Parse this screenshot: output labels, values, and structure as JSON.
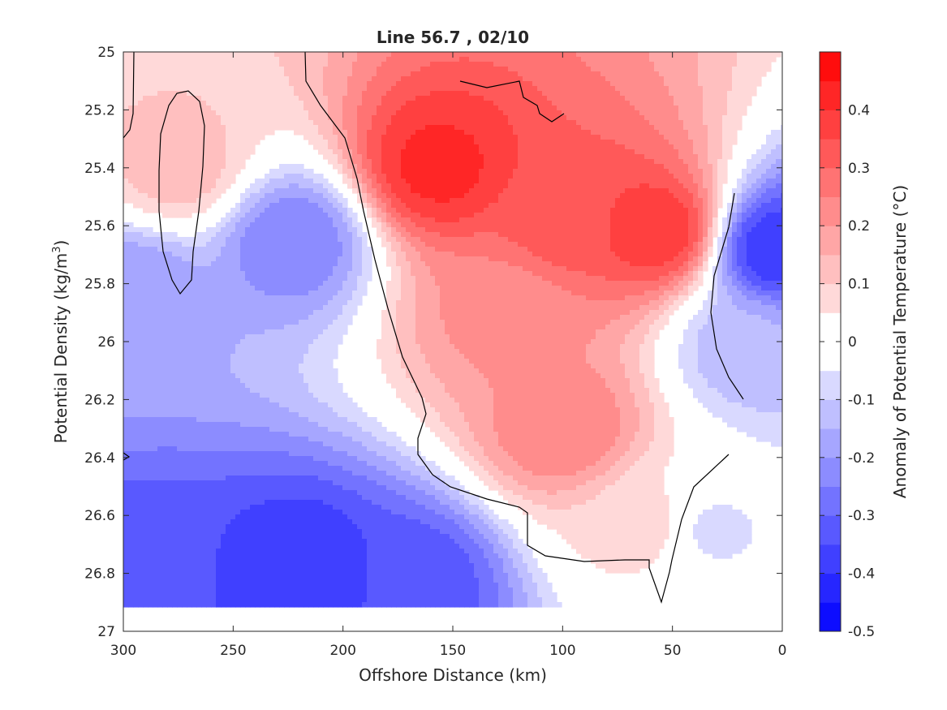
{
  "chart_data": {
    "type": "heatmap",
    "title": "Line 56.7 , 02/10",
    "xlabel": "Offshore Distance (km)",
    "ylabel_base": "Potential Density (kg/m",
    "ylabel_sup": "3",
    "ylabel_end": ")",
    "colorbar_label": "Anomaly of Potential Temperature (°C)",
    "xlim": [
      300,
      0
    ],
    "ylim": [
      25,
      27
    ],
    "x_ticks": [
      "300",
      "250",
      "200",
      "150",
      "100",
      "50",
      "0"
    ],
    "y_ticks": [
      "25",
      "25.2",
      "25.4",
      "25.6",
      "25.8",
      "26",
      "26.2",
      "26.4",
      "26.6",
      "26.8",
      "27"
    ],
    "colorbar_ticks": [
      "0.4",
      "0.3",
      "0.2",
      "0.1",
      "0",
      "-0.1",
      "-0.2",
      "-0.3",
      "-0.4",
      "-0.5"
    ],
    "colorbar_range": [
      -0.5,
      0.5
    ],
    "colorbar_levels": 20,
    "colormap": "blue-white-red",
    "colors": {
      "min": "#0000ff",
      "max": "#ff0000",
      "zero": "#ffffff"
    },
    "contour_levels": [
      0
    ],
    "grid": false,
    "data_extent": {
      "x": [
        300,
        0
      ],
      "y": [
        25,
        26.9
      ]
    },
    "anomaly_features": [
      {
        "x": 157,
        "y": 25.4,
        "value": 0.42
      },
      {
        "x": 57,
        "y": 25.62,
        "value": 0.4
      },
      {
        "x": 97,
        "y": 25.58,
        "value": 0.34
      },
      {
        "x": 125,
        "y": 25.9,
        "value": 0.22
      },
      {
        "x": 100,
        "y": 26.3,
        "value": 0.25
      },
      {
        "x": 275,
        "y": 25.4,
        "value": 0.13
      },
      {
        "x": 298,
        "y": 25.1,
        "value": 0.1
      },
      {
        "x": 62,
        "y": 26.63,
        "value": 0.08
      },
      {
        "x": 223,
        "y": 25.65,
        "value": -0.25
      },
      {
        "x": 288,
        "y": 26.8,
        "value": -0.34
      },
      {
        "x": 218,
        "y": 26.78,
        "value": -0.4
      },
      {
        "x": 168,
        "y": 26.82,
        "value": -0.34
      },
      {
        "x": 296,
        "y": 25.82,
        "value": -0.2
      },
      {
        "x": 3,
        "y": 25.68,
        "value": -0.4
      },
      {
        "x": 15,
        "y": 26.02,
        "value": -0.14
      },
      {
        "x": 33,
        "y": 26.65,
        "value": -0.06
      }
    ]
  }
}
